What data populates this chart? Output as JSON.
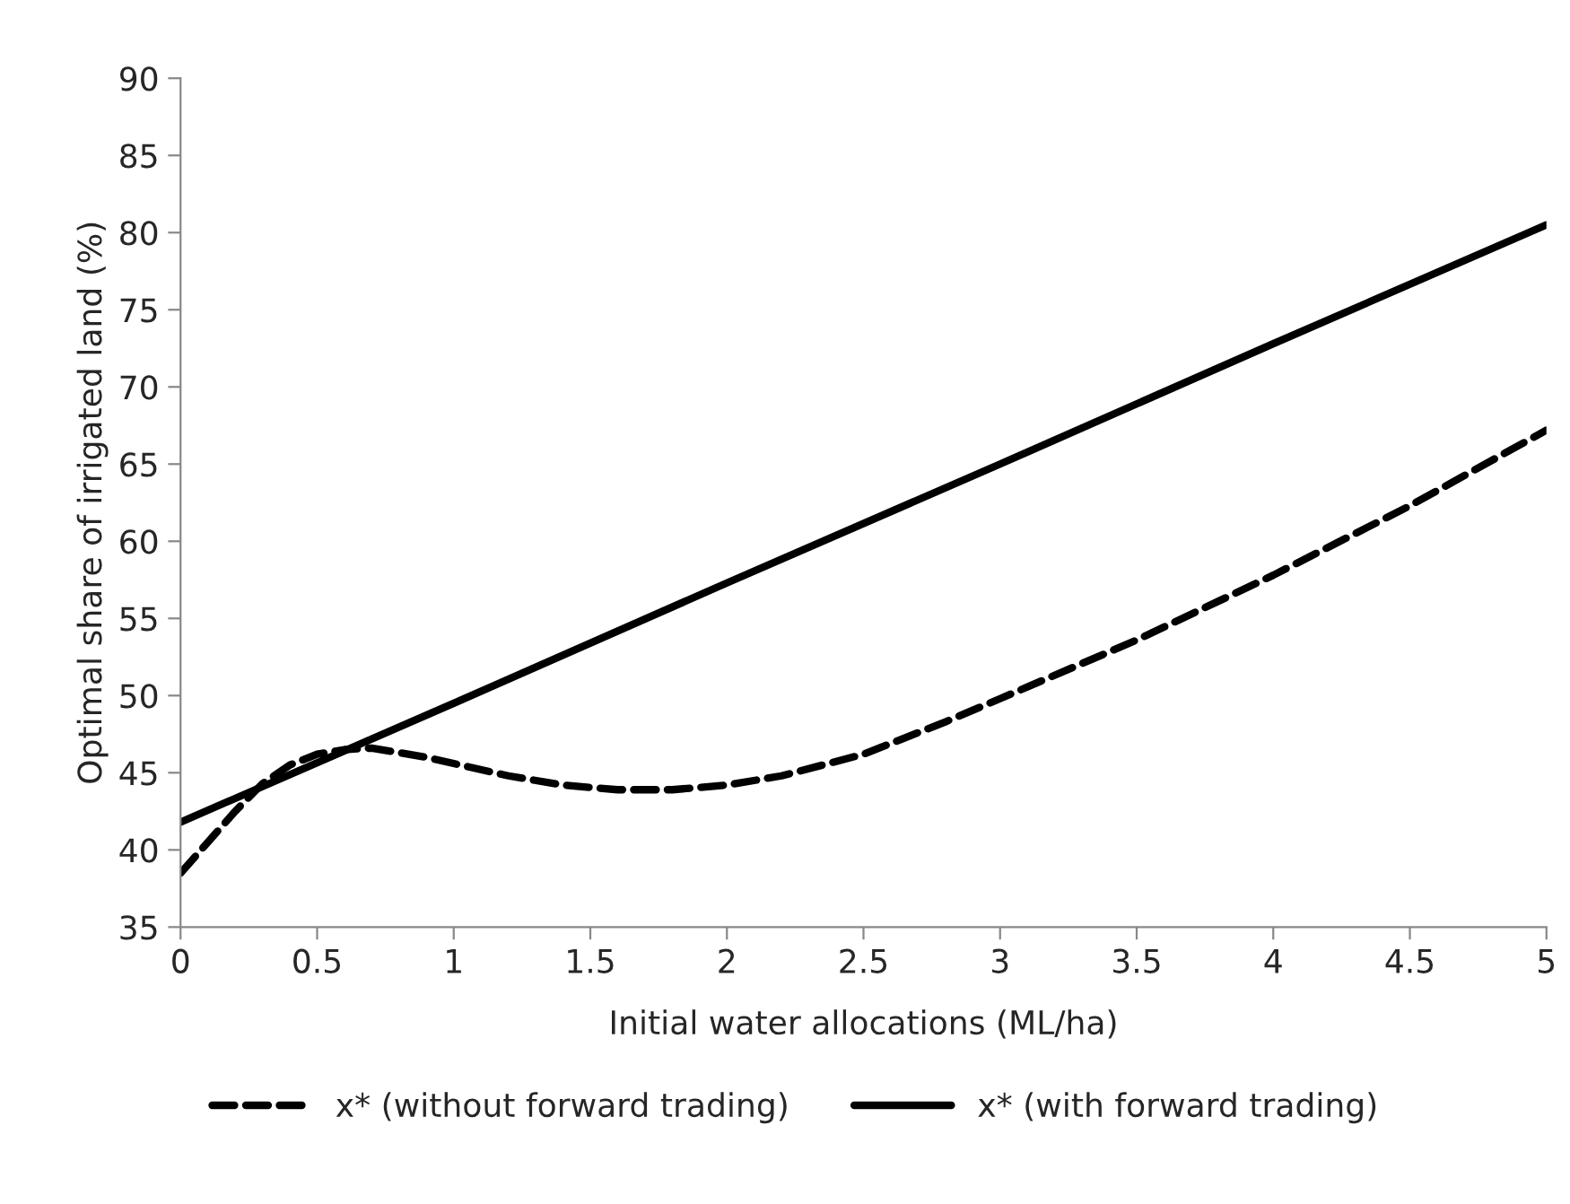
{
  "chart_data": {
    "type": "line",
    "xlabel": "Initial water allocations (ML/ha)",
    "ylabel": "Optimal share of irrigated land (%)",
    "xlim": [
      0,
      5
    ],
    "xticks": [
      0,
      {
        "value": 0.5,
        "label": "0.5"
      },
      1,
      {
        "value": 1.5,
        "label": "1.5"
      },
      2,
      {
        "value": 2.5,
        "label": "2.5"
      },
      3,
      {
        "value": 3.5,
        "label": "3.5"
      },
      4,
      {
        "value": 4.5,
        "label": "4.5"
      },
      5
    ],
    "ylim": [
      35,
      90
    ],
    "yticks": [
      35,
      40,
      45,
      50,
      55,
      60,
      65,
      70,
      75,
      80,
      85,
      90
    ],
    "grid": false,
    "legend": "bottom",
    "series": [
      {
        "name": "x* (without forward trading)",
        "color": "#000000",
        "line_style": "dashed",
        "x": [
          0,
          0.1,
          0.2,
          0.3,
          0.4,
          0.5,
          0.6,
          0.7,
          0.8,
          0.9,
          1.0,
          1.2,
          1.4,
          1.6,
          1.8,
          2.0,
          2.2,
          2.5,
          2.8,
          3.0,
          3.5,
          4.0,
          4.5,
          5.0
        ],
        "values": [
          38.5,
          40.5,
          42.5,
          44.3,
          45.5,
          46.2,
          46.5,
          46.6,
          46.3,
          46.0,
          45.6,
          44.8,
          44.2,
          43.9,
          43.9,
          44.2,
          44.8,
          46.2,
          48.3,
          49.8,
          53.6,
          57.8,
          62.3,
          67.2
        ]
      },
      {
        "name": "x* (with forward trading)",
        "color": "#000000",
        "line_style": "solid",
        "x": [
          0,
          1,
          2,
          3,
          4,
          5
        ],
        "values": [
          41.8,
          49.5,
          57.3,
          65.0,
          72.8,
          80.5
        ]
      }
    ]
  }
}
